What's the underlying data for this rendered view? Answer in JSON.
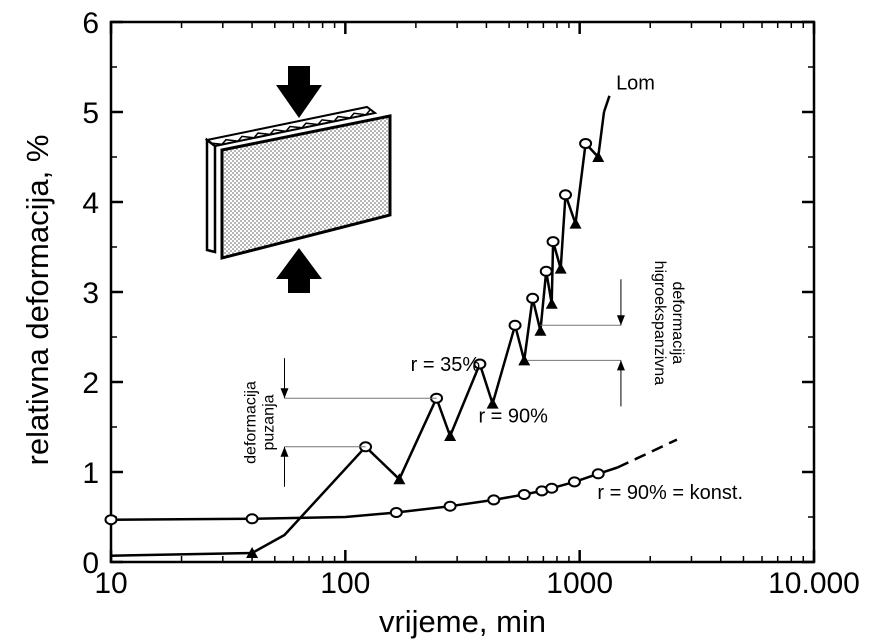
{
  "chart_data": {
    "type": "line",
    "title": "",
    "xlabel": "vrijeme, min",
    "ylabel": "relativna deformacija, %",
    "x_scale": "log",
    "xlim": [
      10,
      10000
    ],
    "ylim": [
      0,
      6
    ],
    "x_ticks": [
      {
        "value": 10,
        "label": "10"
      },
      {
        "value": 100,
        "label": "100"
      },
      {
        "value": 1000,
        "label": "1000"
      },
      {
        "value": 10000,
        "label": "10.000"
      }
    ],
    "y_ticks": [
      {
        "value": 0,
        "label": "0"
      },
      {
        "value": 1,
        "label": "1"
      },
      {
        "value": 2,
        "label": "2"
      },
      {
        "value": 3,
        "label": "3"
      },
      {
        "value": 4,
        "label": "4"
      },
      {
        "value": 5,
        "label": "5"
      },
      {
        "value": 6,
        "label": "6"
      }
    ],
    "grid": false,
    "series": [
      {
        "name": "",
        "marker": "mixed",
        "points": [
          {
            "x": 10,
            "y": 0.07,
            "m": "none"
          },
          {
            "x": 40,
            "y": 0.1,
            "m": "tri"
          },
          {
            "x": 55,
            "y": 0.3,
            "m": "none"
          },
          {
            "x": 122,
            "y": 1.28,
            "m": "circle"
          },
          {
            "x": 170,
            "y": 0.92,
            "m": "tri"
          },
          {
            "x": 245,
            "y": 1.82,
            "m": "circle"
          },
          {
            "x": 280,
            "y": 1.4,
            "m": "tri"
          },
          {
            "x": 375,
            "y": 2.2,
            "m": "circle"
          },
          {
            "x": 425,
            "y": 1.76,
            "m": "tri"
          },
          {
            "x": 530,
            "y": 2.63,
            "m": "circle"
          },
          {
            "x": 580,
            "y": 2.24,
            "m": "tri"
          },
          {
            "x": 630,
            "y": 2.93,
            "m": "circle"
          },
          {
            "x": 680,
            "y": 2.57,
            "m": "tri"
          },
          {
            "x": 720,
            "y": 3.23,
            "m": "circle"
          },
          {
            "x": 760,
            "y": 2.87,
            "m": "tri"
          },
          {
            "x": 770,
            "y": 3.56,
            "m": "circle"
          },
          {
            "x": 830,
            "y": 3.26,
            "m": "tri"
          },
          {
            "x": 870,
            "y": 4.08,
            "m": "circle"
          },
          {
            "x": 960,
            "y": 3.76,
            "m": "tri"
          },
          {
            "x": 1060,
            "y": 4.65,
            "m": "circle"
          },
          {
            "x": 1200,
            "y": 4.5,
            "m": "tri"
          },
          {
            "x": 1270,
            "y": 5.0,
            "m": "none"
          }
        ]
      },
      {
        "name": "",
        "marker": "circle",
        "points": [
          {
            "x": 10,
            "y": 0.47,
            "m": "circle"
          },
          {
            "x": 40,
            "y": 0.48,
            "m": "circle"
          },
          {
            "x": 100,
            "y": 0.5,
            "m": "none"
          },
          {
            "x": 165,
            "y": 0.55,
            "m": "circle"
          },
          {
            "x": 280,
            "y": 0.62,
            "m": "circle"
          },
          {
            "x": 430,
            "y": 0.69,
            "m": "circle"
          },
          {
            "x": 580,
            "y": 0.75,
            "m": "circle"
          },
          {
            "x": 690,
            "y": 0.79,
            "m": "circle"
          },
          {
            "x": 760,
            "y": 0.82,
            "m": "circle"
          },
          {
            "x": 950,
            "y": 0.89,
            "m": "circle"
          },
          {
            "x": 1200,
            "y": 0.98,
            "m": "circle"
          },
          {
            "x": 1450,
            "y": 1.05,
            "m": "none"
          }
        ],
        "extension": [
          {
            "x": 1450,
            "y": 1.05
          },
          {
            "x": 2000,
            "y": 1.22
          },
          {
            "x": 2600,
            "y": 1.36
          }
        ]
      }
    ],
    "annotations": [
      {
        "id": "lom",
        "text": "Lom",
        "x": 1430,
        "y": 5.25
      },
      {
        "id": "r35",
        "text": "r = 35%",
        "x": 190,
        "y": 2.12
      },
      {
        "id": "r90",
        "text": "r = 90%",
        "x": 370,
        "y": 1.55
      },
      {
        "id": "r90konst",
        "text": "r = 90% = konst.",
        "x": 1190,
        "y": 0.7
      },
      {
        "id": "creep",
        "text_lines": [
          "deformacija",
          "puzanja"
        ],
        "x_from": 55,
        "x_to": 245,
        "y_low": 1.28,
        "y_high": 1.82
      },
      {
        "id": "hygro",
        "text_lines": [
          "higroekspanzivna",
          "deformacija"
        ],
        "x_from": 580,
        "x_to": 1500,
        "y_low": 2.24,
        "y_high": 2.63
      }
    ]
  }
}
